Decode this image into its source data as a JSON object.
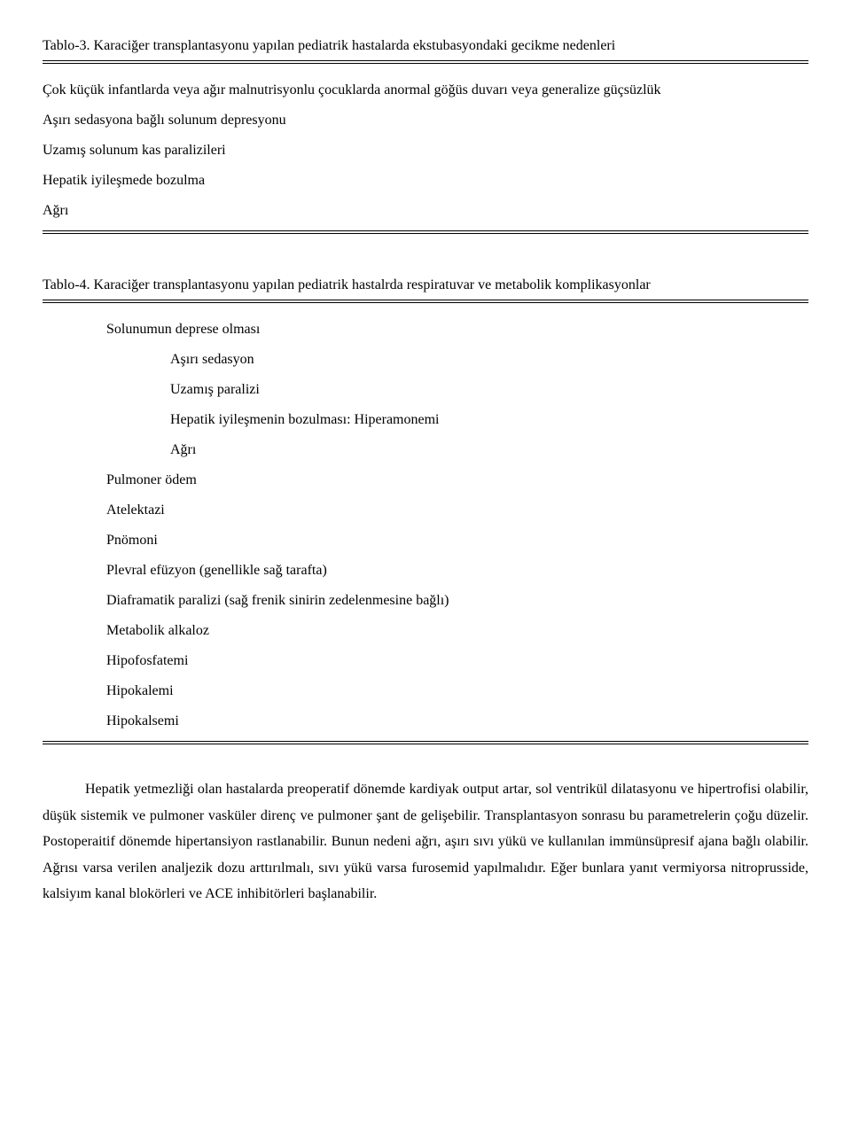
{
  "table3": {
    "title": "Tablo-3. Karaciğer transplantasyonu yapılan pediatrik hastalarda ekstubasyondaki gecikme nedenleri",
    "items": [
      "Çok küçük infantlarda veya ağır malnutrisyonlu çocuklarda anormal göğüs duvarı veya generalize güçsüzlük",
      "Aşırı sedasyona bağlı solunum depresyonu",
      "Uzamış solunum kas paralizileri",
      "Hepatik iyileşmede bozulma",
      "Ağrı"
    ]
  },
  "table4": {
    "title": "Tablo-4. Karaciğer transplantasyonu yapılan pediatrik hastalrda respiratuvar ve metabolik komplikasyonlar",
    "l1_0": "Solunumun deprese olması",
    "l2_0": "Aşırı sedasyon",
    "l2_1": "Uzamış paralizi",
    "l2_2": "Hepatik iyileşmenin bozulması: Hiperamonemi",
    "l2_3": "Ağrı",
    "l1_1": "Pulmoner ödem",
    "l1_2": "Atelektazi",
    "l1_3": "Pnömoni",
    "l1_4": "Plevral efüzyon (genellikle sağ tarafta)",
    "l1_5": "Diaframatik paralizi (sağ frenik sinirin zedelenmesine bağlı)",
    "l1_6": "Metabolik alkaloz",
    "l1_7": "Hipofosfatemi",
    "l1_8": "Hipokalemi",
    "l1_9": "Hipokalsemi"
  },
  "paragraph": "Hepatik yetmezliği olan hastalarda preoperatif dönemde kardiyak output artar, sol ventrikül dilatasyonu ve hipertrofisi olabilir, düşük sistemik ve pulmoner vasküler direnç ve pulmoner şant  de gelişebilir. Transplantasyon sonrasu bu parametrelerin çoğu düzelir. Postoperaitif dönemde hipertansiyon rastlanabilir. Bunun nedeni ağrı, aşırı sıvı yükü ve kullanılan immünsüpresif ajana bağlı olabilir. Ağrısı varsa verilen analjezik dozu arttırılmalı, sıvı yükü varsa furosemid yapılmalıdır. Eğer bunlara yanıt vermiyorsa nitroprusside, kalsiyım kanal blokörleri ve ACE inhibitörleri başlanabilir."
}
